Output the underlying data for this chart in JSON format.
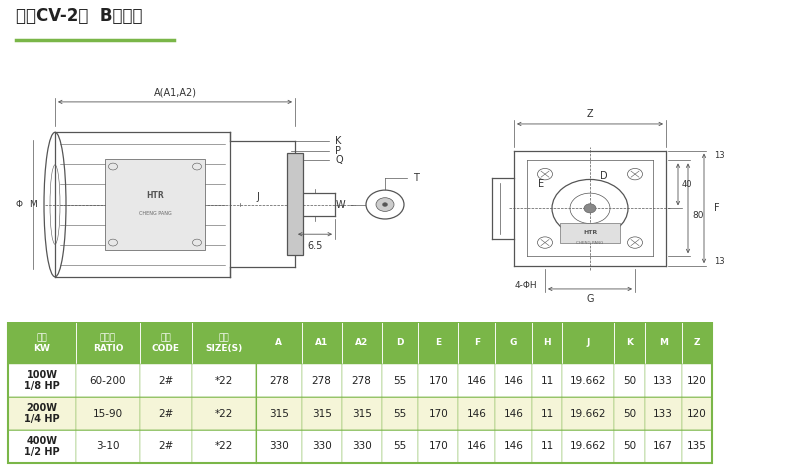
{
  "title": "立式CV-2型  B型法蘭",
  "title_underline_color": "#7ab648",
  "bg_color": "#ffffff",
  "table_header_bg": "#7ab648",
  "table_header_fg": "#ffffff",
  "table_row1_bg": "#ffffff",
  "table_row2_bg": "#f5f5d8",
  "table_row3_bg": "#ffffff",
  "table_border_color": "#7ab648",
  "table_columns": [
    "馬力\nKW",
    "減速比\nRATIO",
    "本體\nCODE",
    "型番\nSIZE(S)",
    "A",
    "A1",
    "A2",
    "D",
    "E",
    "F",
    "G",
    "H",
    "J",
    "K",
    "M",
    "Z"
  ],
  "table_rows": [
    [
      "100W\n1/8 HP",
      "60-200",
      "2#",
      "*22",
      "278",
      "278",
      "278",
      "55",
      "170",
      "146",
      "146",
      "11",
      "19.662",
      "50",
      "133",
      "120"
    ],
    [
      "200W\n1/4 HP",
      "15-90",
      "2#",
      "*22",
      "315",
      "315",
      "315",
      "55",
      "170",
      "146",
      "146",
      "11",
      "19.662",
      "50",
      "133",
      "120"
    ],
    [
      "400W\n1/2 HP",
      "3-10",
      "2#",
      "*22",
      "330",
      "330",
      "330",
      "55",
      "170",
      "146",
      "146",
      "11",
      "19.662",
      "50",
      "167",
      "135"
    ]
  ],
  "diagram_line_color": "#555555",
  "diagram_label_color": "#333333"
}
